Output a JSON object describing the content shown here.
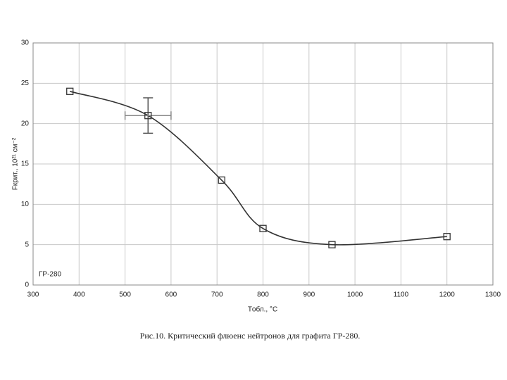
{
  "chart_data": {
    "type": "line",
    "y_label": "Fкрит., 10²¹ см⁻²",
    "x_label": "Tобл., °C",
    "annotation": "ГР-280",
    "caption": "Рис.10. Критический флюенс нейтронов для графита ГР-280.",
    "x": [
      380,
      550,
      710,
      800,
      950,
      1200
    ],
    "series": [
      {
        "color": "#333333",
        "values": [
          24,
          21,
          13,
          7,
          5,
          6
        ],
        "yerr": [
          null,
          2.2,
          null,
          null,
          null,
          null
        ],
        "xerr": [
          null,
          50,
          null,
          null,
          null,
          null
        ]
      }
    ],
    "xlim": [
      300,
      1300
    ],
    "xticks": [
      300,
      400,
      500,
      600,
      700,
      800,
      900,
      1000,
      1100,
      1200,
      1300
    ],
    "ylim": [
      0,
      30
    ],
    "yticks": [
      0,
      5,
      10,
      15,
      20,
      25,
      30
    ],
    "grid": true,
    "smooth": true,
    "marker": "square"
  }
}
